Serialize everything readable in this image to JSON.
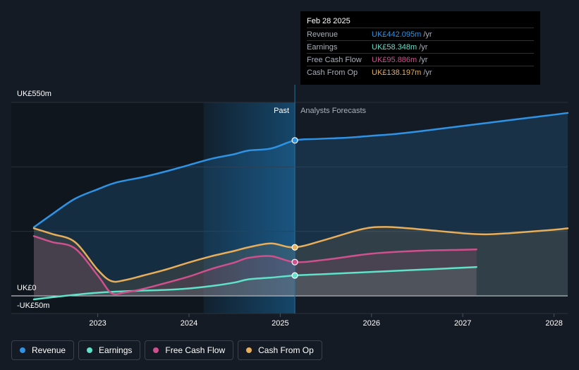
{
  "chart_data": {
    "type": "line",
    "title": "",
    "y_axis": {
      "top_label": "UK£550m",
      "zero_label": "UK£0",
      "bottom_label": "-UK£50m",
      "ylim": [
        -50,
        550
      ]
    },
    "x_ticks": [
      "2023",
      "2024",
      "2025",
      "2026",
      "2027",
      "2028"
    ],
    "x_range": [
      2022.3,
      2028.15
    ],
    "divider": {
      "at": 2025.16,
      "past_label": "Past",
      "forecast_label": "Analysts Forecasts"
    },
    "highlight_start": 2024.16,
    "series": [
      {
        "name": "Revenue",
        "key": "revenue",
        "color": "#2e93e5",
        "points": [
          [
            2022.3,
            195
          ],
          [
            2022.5,
            232
          ],
          [
            2022.75,
            276
          ],
          [
            2023.0,
            303
          ],
          [
            2023.2,
            322
          ],
          [
            2023.5,
            338
          ],
          [
            2023.75,
            354
          ],
          [
            2024.0,
            372
          ],
          [
            2024.25,
            390
          ],
          [
            2024.5,
            403
          ],
          [
            2024.65,
            413
          ],
          [
            2024.9,
            419
          ],
          [
            2025.16,
            442
          ],
          [
            2025.4,
            446
          ],
          [
            2025.75,
            450
          ],
          [
            2026.0,
            455
          ],
          [
            2026.25,
            460
          ],
          [
            2026.5,
            467
          ],
          [
            2026.75,
            475
          ],
          [
            2027.0,
            483
          ],
          [
            2027.25,
            491
          ],
          [
            2027.5,
            499
          ],
          [
            2027.75,
            507
          ],
          [
            2028.0,
            515
          ],
          [
            2028.15,
            520
          ]
        ]
      },
      {
        "name": "Earnings",
        "key": "earnings",
        "color": "#5fe2c9",
        "points": [
          [
            2022.3,
            -10
          ],
          [
            2022.5,
            -4
          ],
          [
            2022.75,
            3
          ],
          [
            2023.0,
            9
          ],
          [
            2023.2,
            12
          ],
          [
            2023.5,
            15
          ],
          [
            2023.75,
            17
          ],
          [
            2024.0,
            21
          ],
          [
            2024.25,
            28
          ],
          [
            2024.5,
            38
          ],
          [
            2024.65,
            47
          ],
          [
            2024.9,
            52
          ],
          [
            2025.16,
            58
          ],
          [
            2025.5,
            62
          ],
          [
            2026.0,
            68
          ],
          [
            2026.5,
            74
          ],
          [
            2027.0,
            80
          ],
          [
            2027.15,
            82
          ]
        ]
      },
      {
        "name": "Free Cash Flow",
        "key": "fcf",
        "color": "#d0508d",
        "points": [
          [
            2022.3,
            170
          ],
          [
            2022.5,
            153
          ],
          [
            2022.75,
            135
          ],
          [
            2023.0,
            58
          ],
          [
            2023.15,
            8
          ],
          [
            2023.3,
            10
          ],
          [
            2023.5,
            20
          ],
          [
            2023.75,
            37
          ],
          [
            2024.0,
            55
          ],
          [
            2024.25,
            77
          ],
          [
            2024.5,
            95
          ],
          [
            2024.65,
            108
          ],
          [
            2024.9,
            113
          ],
          [
            2025.16,
            96
          ],
          [
            2025.5,
            103
          ],
          [
            2026.0,
            120
          ],
          [
            2026.5,
            128
          ],
          [
            2027.0,
            131
          ],
          [
            2027.15,
            132
          ]
        ]
      },
      {
        "name": "Cash From Op",
        "key": "cfo",
        "color": "#e8ae5a",
        "points": [
          [
            2022.3,
            192
          ],
          [
            2022.5,
            176
          ],
          [
            2022.75,
            153
          ],
          [
            2023.0,
            74
          ],
          [
            2023.15,
            42
          ],
          [
            2023.3,
            45
          ],
          [
            2023.5,
            58
          ],
          [
            2023.75,
            75
          ],
          [
            2024.0,
            95
          ],
          [
            2024.25,
            113
          ],
          [
            2024.5,
            128
          ],
          [
            2024.65,
            138
          ],
          [
            2024.9,
            149
          ],
          [
            2025.16,
            138
          ],
          [
            2025.5,
            160
          ],
          [
            2025.9,
            190
          ],
          [
            2026.15,
            196
          ],
          [
            2026.5,
            190
          ],
          [
            2027.0,
            178
          ],
          [
            2027.25,
            175
          ],
          [
            2027.5,
            178
          ],
          [
            2028.0,
            188
          ],
          [
            2028.15,
            192
          ]
        ]
      }
    ]
  },
  "tooltip": {
    "date": "Feb 28 2025",
    "rows": [
      {
        "name": "Revenue",
        "value": "UK£442.095m",
        "unit": "/yr",
        "color": "#2e93e5"
      },
      {
        "name": "Earnings",
        "value": "UK£58.348m",
        "unit": "/yr",
        "color": "#5fe2c9"
      },
      {
        "name": "Free Cash Flow",
        "value": "UK£95.886m",
        "unit": "/yr",
        "color": "#d0508d"
      },
      {
        "name": "Cash From Op",
        "value": "UK£138.197m",
        "unit": "/yr",
        "color": "#e8ae5a"
      }
    ]
  },
  "legend": [
    {
      "label": "Revenue",
      "color": "#2e93e5"
    },
    {
      "label": "Earnings",
      "color": "#5fe2c9"
    },
    {
      "label": "Free Cash Flow",
      "color": "#d0508d"
    },
    {
      "label": "Cash From Op",
      "color": "#e8ae5a"
    }
  ]
}
